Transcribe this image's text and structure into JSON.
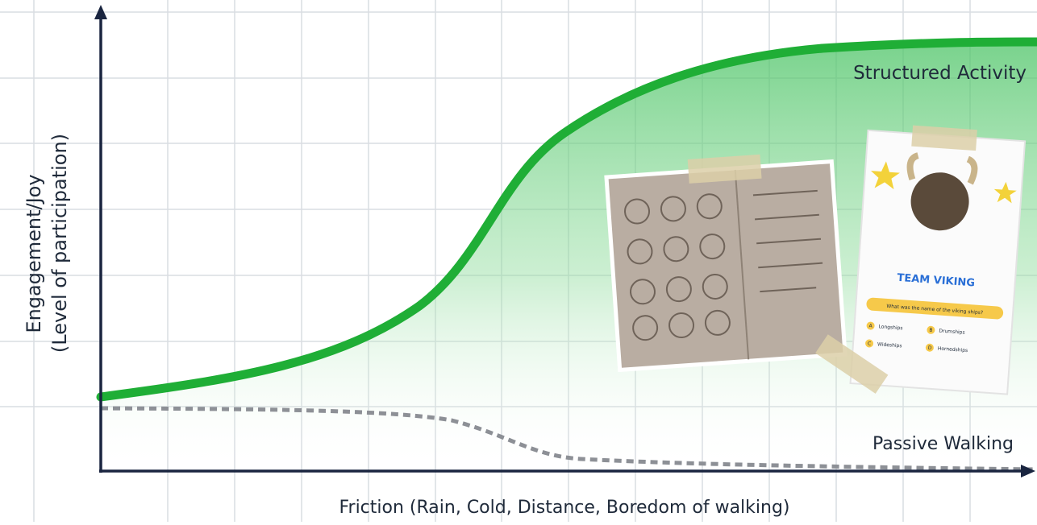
{
  "curves": {
    "structured": "Structured Activity",
    "passive": "Passive Walking"
  },
  "axes": {
    "y_title": "Engagement/Joy",
    "y_subtitle": "(Level of participation)",
    "x_title": "Friction (Rain, Cold, Distance, Boredom of walking)"
  },
  "card": {
    "title": "TEAM VIKING",
    "question": "What was the name of the viking ships?",
    "options": [
      {
        "letter": "A",
        "text": "Longships"
      },
      {
        "letter": "B",
        "text": "Drumships"
      },
      {
        "letter": "C",
        "text": "Wideships"
      },
      {
        "letter": "D",
        "text": "Hornedships"
      }
    ]
  }
}
